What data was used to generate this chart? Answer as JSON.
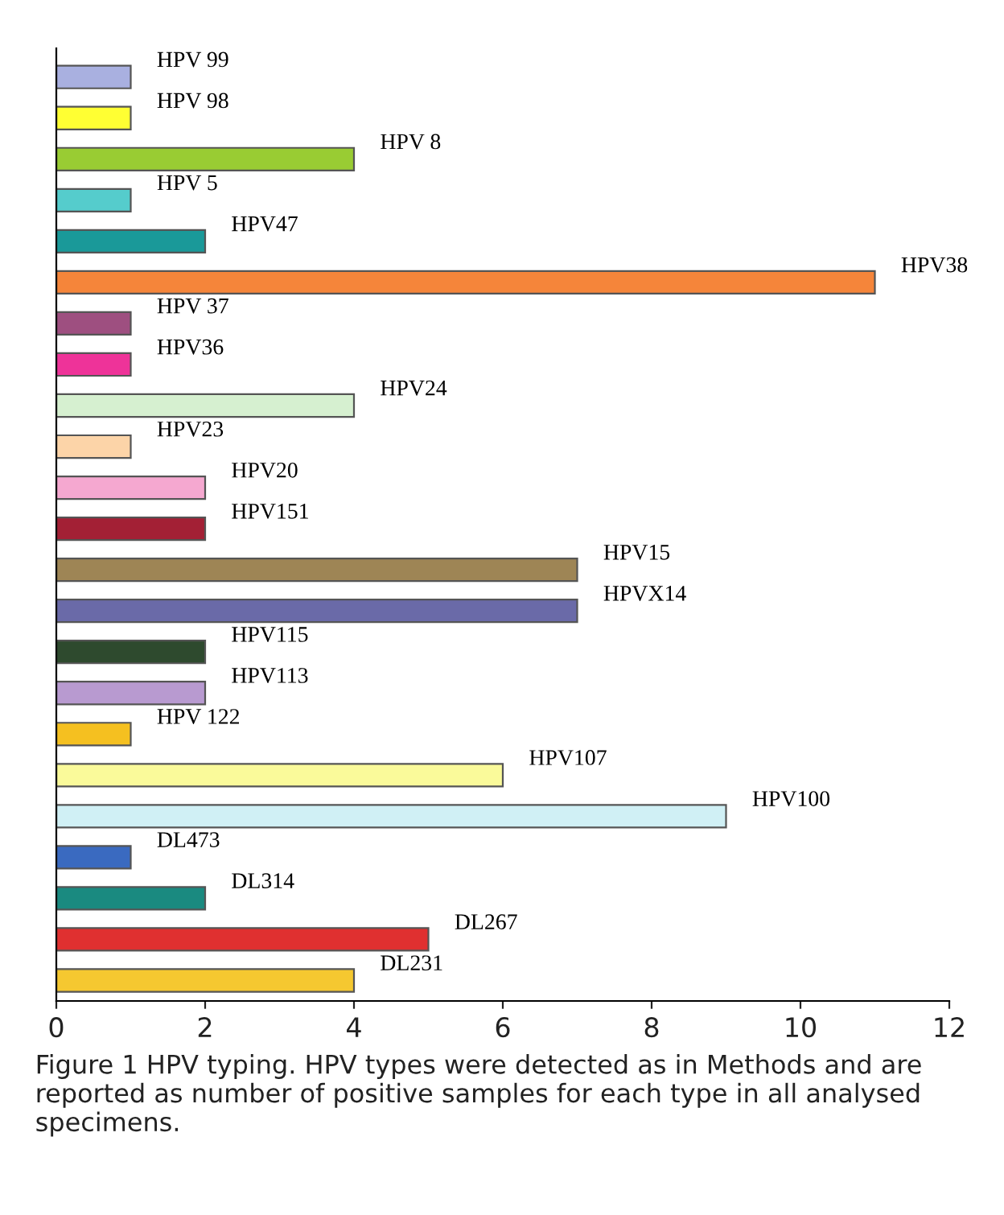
{
  "chart_data": {
    "type": "bar",
    "orientation": "horizontal",
    "categories": [
      "HPV 99",
      "HPV 98",
      "HPV 8",
      "HPV 5",
      "HPV47",
      "HPV38",
      "HPV 37",
      "HPV36",
      "HPV24",
      "HPV23",
      "HPV20",
      "HPV151",
      "HPV15",
      "HPVX14",
      "HPV115",
      "HPV113",
      "HPV 122",
      "HPV107",
      "HPV100",
      "DL473",
      "DL314",
      "DL267",
      "DL231"
    ],
    "values": [
      1,
      1,
      4,
      1,
      2,
      11,
      1,
      1,
      4,
      1,
      2,
      2,
      7,
      7,
      2,
      2,
      1,
      6,
      9,
      1,
      2,
      5,
      4
    ],
    "colors": [
      "#a9b0e0",
      "#ffff33",
      "#99cc33",
      "#55cccc",
      "#1a9999",
      "#f5853a",
      "#9e4f80",
      "#ee3399",
      "#d6f0d0",
      "#fcd4a8",
      "#f5a8d0",
      "#a32035",
      "#9e8555",
      "#6a6aa8",
      "#2e4a2e",
      "#b89ad0",
      "#f5c020",
      "#fafa9a",
      "#d0f0f5",
      "#3a6ac0",
      "#1a8a80",
      "#e03030",
      "#f5c830"
    ],
    "xlim": [
      0,
      12
    ],
    "xticks": [
      0,
      2,
      4,
      6,
      8,
      10,
      12
    ],
    "grid": false,
    "legend": false,
    "annotations": [
      "Figure 1 HPV typing. HPV types were detected as in Methods and are reported as number of positive samples for each type in all analysed specimens."
    ]
  }
}
